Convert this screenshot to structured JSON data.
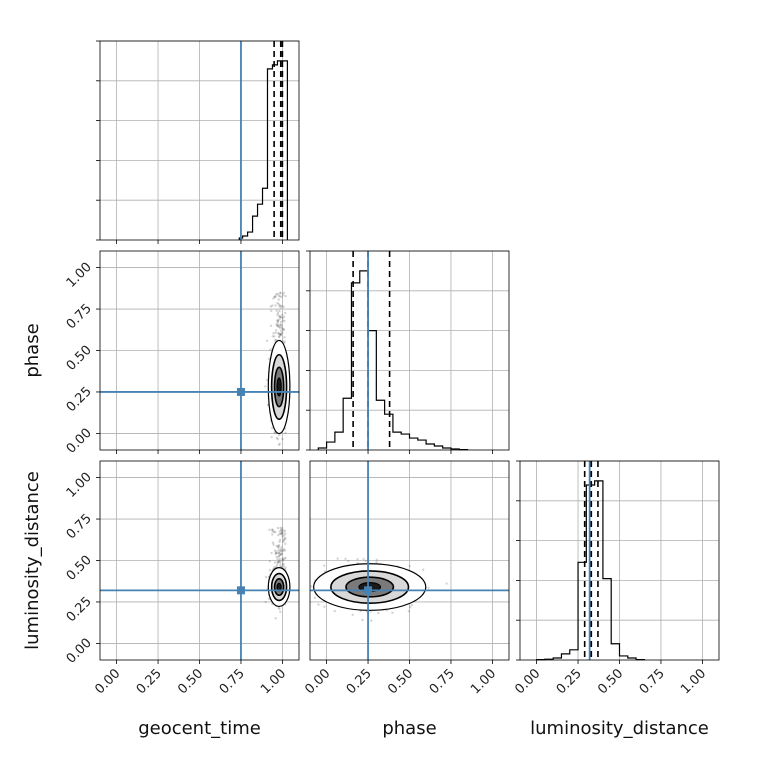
{
  "chart_data": {
    "type": "corner",
    "parameters": [
      "geocent_time",
      "phase",
      "luminosity_distance"
    ],
    "tick_values": [
      0.0,
      0.25,
      0.5,
      0.75,
      1.0
    ],
    "tick_labels": [
      "0.00",
      "0.25",
      "0.50",
      "0.75",
      "1.00"
    ],
    "axis_range": [
      -0.1,
      1.1
    ],
    "grid": true,
    "truths": {
      "geocent_time": 0.75,
      "phase": 0.25,
      "luminosity_distance": 0.32
    },
    "colors": {
      "truth": "#4682b4",
      "hist": "#000000",
      "grid": "#b0b0b0",
      "points": "#555555"
    },
    "histograms": {
      "geocent_time": {
        "bin_edges": [
          0.74,
          0.76,
          0.79,
          0.82,
          0.85,
          0.88,
          0.91,
          0.94,
          0.97,
          1.0,
          1.03
        ],
        "counts": [
          0.01,
          0.02,
          0.04,
          0.12,
          0.18,
          0.26,
          0.86,
          0.88,
          0.9,
          0.9
        ],
        "quantile_lines": [
          0.95,
          0.99,
          1.0
        ]
      },
      "phase": {
        "bin_edges": [
          -0.05,
          0.0,
          0.05,
          0.1,
          0.15,
          0.2,
          0.25,
          0.3,
          0.35,
          0.4,
          0.45,
          0.5,
          0.55,
          0.6,
          0.65,
          0.7,
          0.75,
          0.8,
          0.85
        ],
        "counts": [
          0.01,
          0.04,
          0.09,
          0.26,
          0.84,
          0.9,
          0.6,
          0.25,
          0.18,
          0.09,
          0.08,
          0.06,
          0.05,
          0.03,
          0.02,
          0.01,
          0.005,
          0.002
        ],
        "quantile_lines": [
          0.16,
          0.25,
          0.38
        ]
      },
      "luminosity_distance": {
        "bin_edges": [
          0.0,
          0.05,
          0.1,
          0.15,
          0.2,
          0.25,
          0.3,
          0.35,
          0.4,
          0.45,
          0.5,
          0.55,
          0.6,
          0.65
        ],
        "counts": [
          0.002,
          0.004,
          0.01,
          0.03,
          0.05,
          0.48,
          0.86,
          0.88,
          0.4,
          0.08,
          0.02,
          0.01,
          0.002
        ],
        "quantile_lines": [
          0.29,
          0.33,
          0.37
        ]
      }
    },
    "scatter_panels": [
      {
        "x": "geocent_time",
        "y": "phase",
        "x_center": 0.98,
        "y_center": 0.28,
        "x_spread": 0.025,
        "y_spread": 0.12,
        "tail_to": 0.85
      },
      {
        "x": "geocent_time",
        "y": "luminosity_distance",
        "x_center": 0.98,
        "y_center": 0.34,
        "x_spread": 0.025,
        "y_spread": 0.05,
        "tail_to": 0.7
      },
      {
        "x": "phase",
        "y": "luminosity_distance",
        "x_center": 0.26,
        "y_center": 0.34,
        "x_spread": 0.13,
        "y_spread": 0.06,
        "tail_to": 0.0
      }
    ]
  }
}
